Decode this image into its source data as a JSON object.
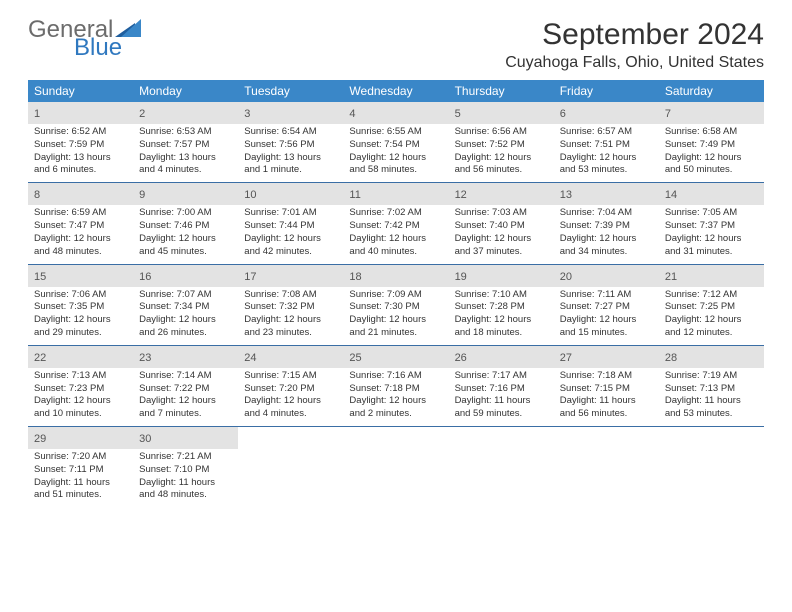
{
  "logo": {
    "word1": "General",
    "word2": "Blue"
  },
  "title": "September 2024",
  "location": "Cuyahoga Falls, Ohio, United States",
  "dayNames": [
    "Sunday",
    "Monday",
    "Tuesday",
    "Wednesday",
    "Thursday",
    "Friday",
    "Saturday"
  ],
  "colors": {
    "headerBar": "#3a87c8",
    "dayNumBg": "#e3e3e3",
    "rowBorder": "#3a6ea5",
    "logoGray": "#6c6c6c",
    "logoBlue": "#2f78bf"
  },
  "weeks": [
    [
      {
        "num": "1",
        "sunrise": "Sunrise: 6:52 AM",
        "sunset": "Sunset: 7:59 PM",
        "daylight": "Daylight: 13 hours and 6 minutes."
      },
      {
        "num": "2",
        "sunrise": "Sunrise: 6:53 AM",
        "sunset": "Sunset: 7:57 PM",
        "daylight": "Daylight: 13 hours and 4 minutes."
      },
      {
        "num": "3",
        "sunrise": "Sunrise: 6:54 AM",
        "sunset": "Sunset: 7:56 PM",
        "daylight": "Daylight: 13 hours and 1 minute."
      },
      {
        "num": "4",
        "sunrise": "Sunrise: 6:55 AM",
        "sunset": "Sunset: 7:54 PM",
        "daylight": "Daylight: 12 hours and 58 minutes."
      },
      {
        "num": "5",
        "sunrise": "Sunrise: 6:56 AM",
        "sunset": "Sunset: 7:52 PM",
        "daylight": "Daylight: 12 hours and 56 minutes."
      },
      {
        "num": "6",
        "sunrise": "Sunrise: 6:57 AM",
        "sunset": "Sunset: 7:51 PM",
        "daylight": "Daylight: 12 hours and 53 minutes."
      },
      {
        "num": "7",
        "sunrise": "Sunrise: 6:58 AM",
        "sunset": "Sunset: 7:49 PM",
        "daylight": "Daylight: 12 hours and 50 minutes."
      }
    ],
    [
      {
        "num": "8",
        "sunrise": "Sunrise: 6:59 AM",
        "sunset": "Sunset: 7:47 PM",
        "daylight": "Daylight: 12 hours and 48 minutes."
      },
      {
        "num": "9",
        "sunrise": "Sunrise: 7:00 AM",
        "sunset": "Sunset: 7:46 PM",
        "daylight": "Daylight: 12 hours and 45 minutes."
      },
      {
        "num": "10",
        "sunrise": "Sunrise: 7:01 AM",
        "sunset": "Sunset: 7:44 PM",
        "daylight": "Daylight: 12 hours and 42 minutes."
      },
      {
        "num": "11",
        "sunrise": "Sunrise: 7:02 AM",
        "sunset": "Sunset: 7:42 PM",
        "daylight": "Daylight: 12 hours and 40 minutes."
      },
      {
        "num": "12",
        "sunrise": "Sunrise: 7:03 AM",
        "sunset": "Sunset: 7:40 PM",
        "daylight": "Daylight: 12 hours and 37 minutes."
      },
      {
        "num": "13",
        "sunrise": "Sunrise: 7:04 AM",
        "sunset": "Sunset: 7:39 PM",
        "daylight": "Daylight: 12 hours and 34 minutes."
      },
      {
        "num": "14",
        "sunrise": "Sunrise: 7:05 AM",
        "sunset": "Sunset: 7:37 PM",
        "daylight": "Daylight: 12 hours and 31 minutes."
      }
    ],
    [
      {
        "num": "15",
        "sunrise": "Sunrise: 7:06 AM",
        "sunset": "Sunset: 7:35 PM",
        "daylight": "Daylight: 12 hours and 29 minutes."
      },
      {
        "num": "16",
        "sunrise": "Sunrise: 7:07 AM",
        "sunset": "Sunset: 7:34 PM",
        "daylight": "Daylight: 12 hours and 26 minutes."
      },
      {
        "num": "17",
        "sunrise": "Sunrise: 7:08 AM",
        "sunset": "Sunset: 7:32 PM",
        "daylight": "Daylight: 12 hours and 23 minutes."
      },
      {
        "num": "18",
        "sunrise": "Sunrise: 7:09 AM",
        "sunset": "Sunset: 7:30 PM",
        "daylight": "Daylight: 12 hours and 21 minutes."
      },
      {
        "num": "19",
        "sunrise": "Sunrise: 7:10 AM",
        "sunset": "Sunset: 7:28 PM",
        "daylight": "Daylight: 12 hours and 18 minutes."
      },
      {
        "num": "20",
        "sunrise": "Sunrise: 7:11 AM",
        "sunset": "Sunset: 7:27 PM",
        "daylight": "Daylight: 12 hours and 15 minutes."
      },
      {
        "num": "21",
        "sunrise": "Sunrise: 7:12 AM",
        "sunset": "Sunset: 7:25 PM",
        "daylight": "Daylight: 12 hours and 12 minutes."
      }
    ],
    [
      {
        "num": "22",
        "sunrise": "Sunrise: 7:13 AM",
        "sunset": "Sunset: 7:23 PM",
        "daylight": "Daylight: 12 hours and 10 minutes."
      },
      {
        "num": "23",
        "sunrise": "Sunrise: 7:14 AM",
        "sunset": "Sunset: 7:22 PM",
        "daylight": "Daylight: 12 hours and 7 minutes."
      },
      {
        "num": "24",
        "sunrise": "Sunrise: 7:15 AM",
        "sunset": "Sunset: 7:20 PM",
        "daylight": "Daylight: 12 hours and 4 minutes."
      },
      {
        "num": "25",
        "sunrise": "Sunrise: 7:16 AM",
        "sunset": "Sunset: 7:18 PM",
        "daylight": "Daylight: 12 hours and 2 minutes."
      },
      {
        "num": "26",
        "sunrise": "Sunrise: 7:17 AM",
        "sunset": "Sunset: 7:16 PM",
        "daylight": "Daylight: 11 hours and 59 minutes."
      },
      {
        "num": "27",
        "sunrise": "Sunrise: 7:18 AM",
        "sunset": "Sunset: 7:15 PM",
        "daylight": "Daylight: 11 hours and 56 minutes."
      },
      {
        "num": "28",
        "sunrise": "Sunrise: 7:19 AM",
        "sunset": "Sunset: 7:13 PM",
        "daylight": "Daylight: 11 hours and 53 minutes."
      }
    ],
    [
      {
        "num": "29",
        "sunrise": "Sunrise: 7:20 AM",
        "sunset": "Sunset: 7:11 PM",
        "daylight": "Daylight: 11 hours and 51 minutes."
      },
      {
        "num": "30",
        "sunrise": "Sunrise: 7:21 AM",
        "sunset": "Sunset: 7:10 PM",
        "daylight": "Daylight: 11 hours and 48 minutes."
      },
      null,
      null,
      null,
      null,
      null
    ]
  ]
}
